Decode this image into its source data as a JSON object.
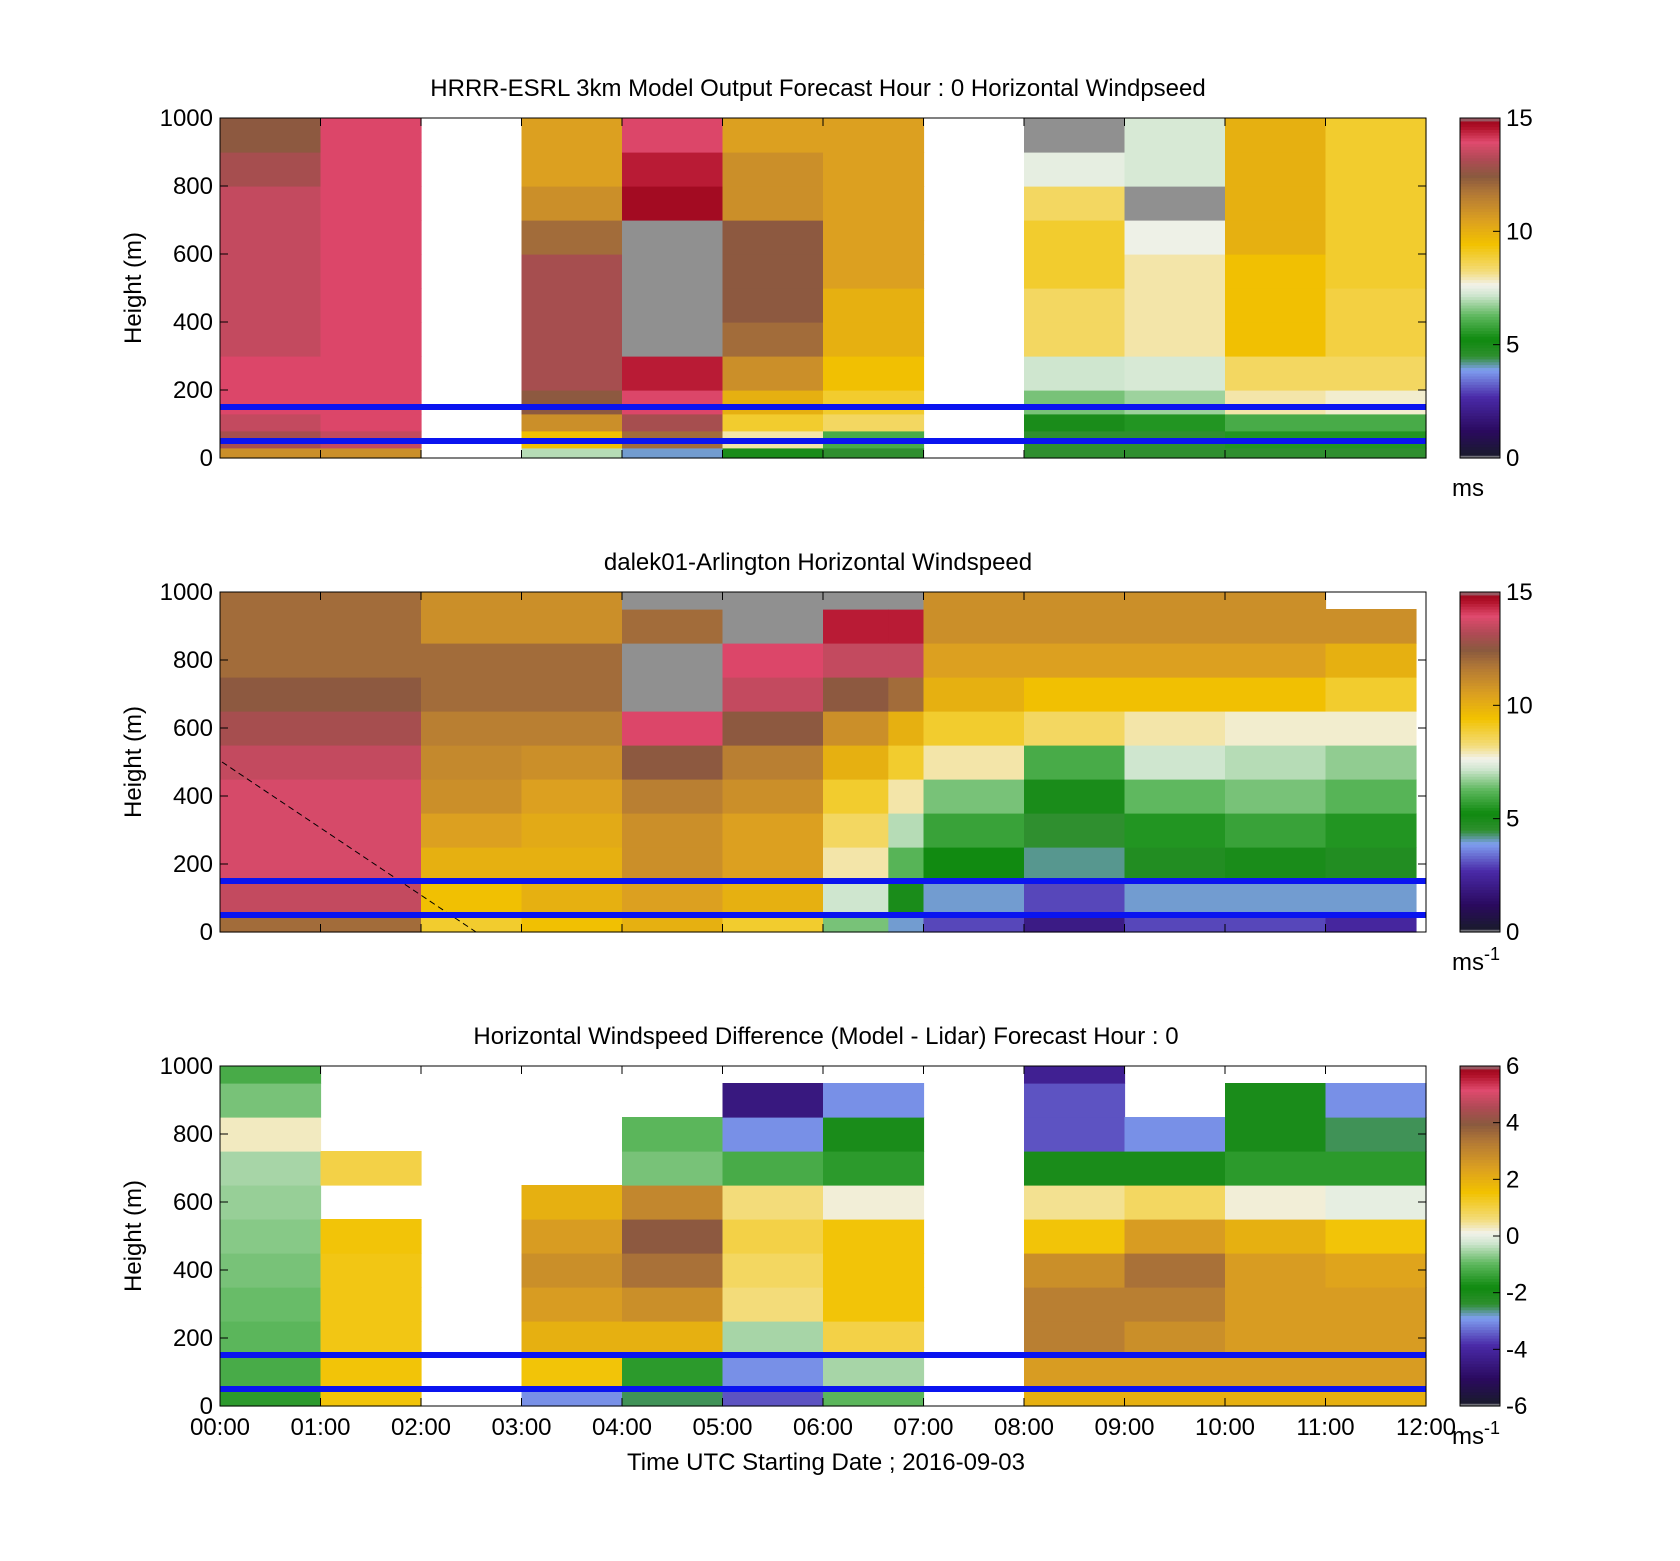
{
  "figure": {
    "xlabel": "Time UTC  Starting Date ; 2016-09-03",
    "x_tick_labels": [
      "00:00",
      "01:00",
      "02:00",
      "03:00",
      "04:00",
      "05:00",
      "06:00",
      "07:00",
      "08:00",
      "09:00",
      "10:00",
      "11:00",
      "12:00"
    ],
    "reference_lines": {
      "color": "#0a14f0",
      "heights_m": [
        50,
        150
      ]
    }
  },
  "chart_data": [
    {
      "type": "heatmap",
      "title": "HRRR-ESRL 3km Model Output   Forecast Hour : 0 Horizontal Windpseed",
      "ylabel": "Height (m)",
      "xlim": [
        0,
        12
      ],
      "ylim": [
        0,
        1000
      ],
      "y_ticks": [
        0,
        200,
        400,
        600,
        800,
        1000
      ],
      "colorbar": {
        "range": [
          0,
          15
        ],
        "ticks": [
          0,
          5,
          10,
          15
        ],
        "unit": "ms",
        "unit_sup": ""
      },
      "heights_m": [
        0,
        30,
        80,
        130,
        200,
        300,
        400,
        500,
        600,
        700,
        800,
        900,
        1000
      ],
      "columns": [
        {
          "start": 0,
          "end": 1,
          "values": [
            11,
            13,
            13.5,
            14,
            14,
            13.5,
            13.5,
            13.5,
            13.5,
            13.5,
            13,
            12.5
          ]
        },
        {
          "start": 1,
          "end": 2,
          "values": [
            11,
            13.5,
            14,
            14,
            14,
            14,
            14,
            14,
            14,
            14,
            14,
            14
          ]
        },
        {
          "start": 2,
          "end": 3,
          "values": null
        },
        {
          "start": 3,
          "end": 4,
          "values": [
            7,
            9.5,
            11,
            12.5,
            13,
            13,
            13,
            13,
            12,
            11,
            10.5,
            10.5
          ]
        },
        {
          "start": 4,
          "end": 5,
          "values": [
            4,
            12,
            13,
            14,
            14.5,
            15.5,
            15.5,
            15.5,
            15.5,
            14.8,
            14.5,
            14
          ]
        },
        {
          "start": 5,
          "end": 6,
          "values": [
            5,
            8,
            9,
            10,
            11,
            12,
            12.5,
            12.5,
            12.5,
            11,
            11,
            10.5
          ]
        },
        {
          "start": 6,
          "end": 7,
          "values": [
            4.5,
            6,
            8.5,
            9,
            9.5,
            10,
            10,
            10.5,
            10.5,
            10.5,
            10.5,
            10.5
          ]
        },
        {
          "start": 7,
          "end": 8,
          "values": null
        },
        {
          "start": 8,
          "end": 9,
          "values": [
            4.5,
            4.5,
            5,
            6.5,
            7.2,
            8.5,
            8.5,
            9,
            9,
            8.5,
            7.5,
            15.5
          ]
        },
        {
          "start": 9,
          "end": 10,
          "values": [
            4.5,
            4.5,
            5.5,
            6.8,
            7.3,
            8,
            8,
            8,
            7.6,
            15.5,
            7.3,
            7.3
          ]
        },
        {
          "start": 10,
          "end": 11,
          "values": [
            4.5,
            5.5,
            6,
            8,
            8.5,
            9.5,
            9.5,
            9.5,
            10,
            10,
            10,
            10
          ]
        },
        {
          "start": 11,
          "end": 12,
          "values": [
            4.5,
            5.5,
            6,
            7.8,
            8.5,
            8.8,
            8.8,
            9,
            9,
            9,
            9,
            9
          ]
        }
      ]
    },
    {
      "type": "heatmap",
      "title": "dalek01-Arlington  Horizontal Windspeed",
      "ylabel": "Height (m)",
      "xlim": [
        0,
        12
      ],
      "ylim": [
        0,
        1000
      ],
      "y_ticks": [
        0,
        200,
        400,
        600,
        800,
        1000
      ],
      "colorbar": {
        "range": [
          0,
          15
        ],
        "ticks": [
          0,
          5,
          10,
          15
        ],
        "unit": "ms",
        "unit_sup": "-1"
      },
      "heights_m": [
        0,
        50,
        150,
        250,
        350,
        450,
        550,
        650,
        750,
        850,
        950,
        1000
      ],
      "columns": [
        {
          "start": 0,
          "end": 2,
          "values": [
            12,
            13.5,
            13.8,
            13.8,
            13.8,
            13.5,
            13,
            12.5,
            12,
            12,
            12
          ]
        },
        {
          "start": 2,
          "end": 3,
          "values": [
            9,
            9.5,
            10,
            10.5,
            11,
            11.2,
            11.5,
            12,
            12,
            11,
            11
          ]
        },
        {
          "start": 3,
          "end": 4,
          "values": [
            9.5,
            10,
            10,
            10.2,
            10.5,
            11,
            11.5,
            12,
            12,
            11,
            11
          ]
        },
        {
          "start": 4,
          "end": 5,
          "values": [
            10,
            10.5,
            11,
            11,
            11.5,
            12.5,
            14,
            15.5,
            15.5,
            12,
            15.5
          ]
        },
        {
          "start": 5,
          "end": 6,
          "values": [
            9,
            10,
            10.5,
            10.5,
            11,
            11.5,
            12.5,
            13.5,
            14,
            15.5,
            15.5
          ]
        },
        {
          "start": 6,
          "end": 6.65,
          "values": [
            6.5,
            7.2,
            8,
            8.5,
            9,
            10,
            11,
            12.5,
            13.5,
            14.5,
            15.5
          ]
        },
        {
          "start": 6.65,
          "end": 7,
          "values": [
            4,
            5,
            6.2,
            7,
            8,
            9,
            10,
            12,
            13.5,
            14.5,
            15.5
          ]
        },
        {
          "start": 7,
          "end": 8,
          "values": [
            3,
            4,
            5.2,
            5.8,
            6.5,
            8,
            9,
            10,
            10.5,
            11,
            11
          ]
        },
        {
          "start": 8,
          "end": 9,
          "values": [
            2,
            3,
            4.2,
            4.5,
            5,
            6,
            8.5,
            9.5,
            10.5,
            11,
            11
          ]
        },
        {
          "start": 9,
          "end": 10,
          "values": [
            3,
            4,
            4.8,
            5.5,
            6.3,
            7.2,
            8,
            9.5,
            10.5,
            11,
            11
          ]
        },
        {
          "start": 10,
          "end": 11,
          "values": [
            3,
            4,
            5,
            5.8,
            6.5,
            7,
            7.8,
            9.5,
            10.5,
            11,
            11
          ]
        },
        {
          "start": 11,
          "end": 11.9,
          "values": [
            2.5,
            4,
            4.8,
            5.5,
            6.2,
            6.7,
            7.8,
            9,
            10,
            11,
            null
          ]
        }
      ]
    },
    {
      "type": "heatmap",
      "title": "Horizontal Windspeed Difference (Model - Lidar) Forecast Hour : 0",
      "ylabel": "Height (m)",
      "xlim": [
        0,
        12
      ],
      "ylim": [
        0,
        1000
      ],
      "y_ticks": [
        0,
        200,
        400,
        600,
        800,
        1000
      ],
      "colorbar": {
        "range": [
          -6,
          6
        ],
        "ticks": [
          -6,
          -4,
          -2,
          0,
          2,
          4,
          6
        ],
        "unit": "ms",
        "unit_sup": "-1"
      },
      "heights_m": [
        0,
        50,
        150,
        250,
        350,
        450,
        550,
        650,
        750,
        850,
        950,
        1000
      ],
      "columns": [
        {
          "start": 0,
          "end": 1,
          "values": [
            -1.5,
            -1.2,
            -1,
            -0.9,
            -0.8,
            -0.7,
            -0.6,
            -0.5,
            0.3,
            -0.8,
            -1.2
          ]
        },
        {
          "start": 1,
          "end": 2,
          "values": [
            1.5,
            1.5,
            1.4,
            1.4,
            1.4,
            1.5,
            null,
            1,
            null,
            null,
            null
          ]
        },
        {
          "start": 2,
          "end": 3,
          "values": null
        },
        {
          "start": 3,
          "end": 4,
          "values": [
            -3,
            1.5,
            2,
            2.5,
            2.8,
            2.5,
            2,
            null,
            null,
            null,
            null
          ]
        },
        {
          "start": 4,
          "end": 5,
          "values": [
            -2.5,
            -1.5,
            2,
            2.8,
            3.5,
            4,
            3,
            -0.8,
            -1,
            null,
            null
          ]
        },
        {
          "start": 5,
          "end": 6,
          "values": [
            -3.5,
            -3,
            -0.5,
            0.6,
            0.8,
            1,
            0.6,
            -1.2,
            -3,
            -4.5,
            null
          ]
        },
        {
          "start": 6,
          "end": 7,
          "values": [
            -1,
            -0.5,
            1,
            1.5,
            1.5,
            1.5,
            0.2,
            -1.5,
            -2,
            -3,
            null
          ]
        },
        {
          "start": 7,
          "end": 8,
          "values": null
        },
        {
          "start": 8,
          "end": 9,
          "values": [
            2,
            2.5,
            3.2,
            3.2,
            2.8,
            1.5,
            0.5,
            -2,
            -3.5,
            -3.5,
            -4.2
          ]
        },
        {
          "start": 9,
          "end": 10,
          "values": [
            2,
            2.5,
            2.8,
            3.2,
            3.5,
            2.5,
            0.8,
            -2,
            -3,
            null,
            null
          ]
        },
        {
          "start": 10,
          "end": 11,
          "values": [
            2,
            2.5,
            2.5,
            2.5,
            2.5,
            2,
            0.2,
            -1.5,
            -2,
            -2,
            null
          ]
        },
        {
          "start": 11,
          "end": 12,
          "values": [
            2,
            2.5,
            2.5,
            2.5,
            2.3,
            1.5,
            0,
            -1.5,
            -2.5,
            -3,
            null
          ]
        }
      ]
    }
  ],
  "colormap": [
    [
      0.0,
      "#aaaaaa"
    ],
    [
      0.0101,
      "#1a1a2e"
    ],
    [
      0.08,
      "#2a0a5e"
    ],
    [
      0.18,
      "#4a2aa8"
    ],
    [
      0.26,
      "#7f9ff0"
    ],
    [
      0.3,
      "#2f8f2f"
    ],
    [
      0.35,
      "#0f8a0f"
    ],
    [
      0.42,
      "#5fb85f"
    ],
    [
      0.48,
      "#cfe6cf"
    ],
    [
      0.51,
      "#f2f2ea"
    ],
    [
      0.55,
      "#f3dc7a"
    ],
    [
      0.63,
      "#f2c200"
    ],
    [
      0.7,
      "#dca020"
    ],
    [
      0.78,
      "#b27836"
    ],
    [
      0.83,
      "#8a5a3f"
    ],
    [
      0.88,
      "#b04a55"
    ],
    [
      0.93,
      "#e04a6e"
    ],
    [
      0.975,
      "#b01028"
    ],
    [
      0.9899,
      "#a00a20"
    ],
    [
      1.0,
      "#909090"
    ]
  ]
}
